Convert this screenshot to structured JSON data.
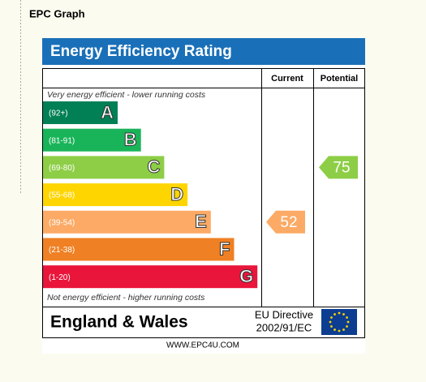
{
  "header": {
    "title": "EPC Graph"
  },
  "epc": {
    "title": "Energy Efficiency Rating",
    "columns": [
      "Current",
      "Potential"
    ],
    "top_note": "Very energy efficient - lower running costs",
    "bottom_note": "Not energy efficient - higher running costs",
    "bands": [
      {
        "range": "(92+)",
        "letter": "A",
        "color": "#008054"
      },
      {
        "range": "(81-91)",
        "letter": "B",
        "color": "#19b459"
      },
      {
        "range": "(69-80)",
        "letter": "C",
        "color": "#8dce46"
      },
      {
        "range": "(55-68)",
        "letter": "D",
        "color": "#ffd500"
      },
      {
        "range": "(39-54)",
        "letter": "E",
        "color": "#fcaa65"
      },
      {
        "range": "(21-38)",
        "letter": "F",
        "color": "#ef8023"
      },
      {
        "range": "(1-20)",
        "letter": "G",
        "color": "#e9153b"
      }
    ],
    "current": 52,
    "potential": 75,
    "region": "England & Wales",
    "directive": [
      "EU Directive",
      "2002/91/EC"
    ],
    "footer": "WWW.EPC4U.COM"
  }
}
